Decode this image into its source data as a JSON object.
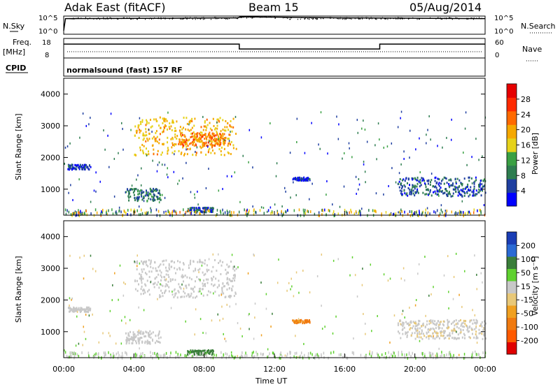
{
  "header": {
    "radar": "Adak East (fitACF)",
    "beam": "Beam 15",
    "date": "05/Aug/2014"
  },
  "noise_panel": {
    "left_label": "N.Sky",
    "right_label": "N.Search",
    "ticks": [
      "10^5",
      "10^0"
    ]
  },
  "freq_panel": {
    "left_label_top": "Freq.",
    "left_label_unit": "[MHz]",
    "left_ticks": [
      "18",
      "8"
    ],
    "right_label": "Nave",
    "right_ticks": [
      "60",
      "0"
    ],
    "cpid_label": "CPID"
  },
  "cpid_panel": {
    "text": "normalsound (fast) 157 RF"
  },
  "colors": {
    "power": [
      "#0000ff",
      "#1f3fa0",
      "#2e7d50",
      "#3aa043",
      "#e6d21a",
      "#f5a800",
      "#ff6a00",
      "#ff2a00",
      "#e60000"
    ],
    "velocity": [
      "#1a3db5",
      "#2a6ad4",
      "#3a7e3a",
      "#5fd12f",
      "#c8c8c8",
      "#e8c878",
      "#f0a020",
      "#f07a10",
      "#ff5a00",
      "#e00000"
    ]
  },
  "chart_data": [
    {
      "type": "line",
      "name": "noise",
      "x": [
        0,
        0.1,
        6,
        9,
        9.9,
        10.1,
        12,
        16,
        20,
        24
      ],
      "series": [
        {
          "values": [
            1,
            4.3,
            4.4,
            4.5,
            4.5,
            4.8,
            4.7,
            4.5,
            4.4,
            4.3
          ]
        }
      ],
      "ylim": [
        0,
        5
      ]
    },
    {
      "type": "line",
      "name": "frequency",
      "x": [
        0,
        10,
        10,
        18,
        18,
        24
      ],
      "series": [
        {
          "values": [
            14.5,
            14.5,
            11.5,
            11.5,
            14.5,
            14.5
          ]
        }
      ],
      "ylim": [
        6,
        18
      ]
    },
    {
      "type": "heatmap",
      "name": "power",
      "xlabel": "",
      "ylabel": "Slant Range [km]",
      "xlim": [
        0,
        24
      ],
      "ylim": [
        180,
        4500
      ],
      "yticks": [
        "1000",
        "2000",
        "3000",
        "4000"
      ],
      "colorbar_label": "Power [dB]",
      "colorbar_ticks": [
        "4",
        "8",
        "12",
        "16",
        "20",
        "24",
        "28"
      ],
      "features": [
        {
          "t0": 4.0,
          "t1": 9.8,
          "r0": 2100,
          "r1": 3300,
          "level": 20
        },
        {
          "t0": 6.5,
          "t1": 9.2,
          "r0": 2400,
          "r1": 2800,
          "level": 24
        },
        {
          "t0": 0.2,
          "t1": 1.5,
          "r0": 1650,
          "r1": 1800,
          "level": 6
        },
        {
          "t0": 3.5,
          "t1": 5.5,
          "r0": 650,
          "r1": 1050,
          "level": 10
        },
        {
          "t0": 7.0,
          "t1": 8.5,
          "r0": 300,
          "r1": 450,
          "level": 8
        },
        {
          "t0": 13.0,
          "t1": 14.0,
          "r0": 1300,
          "r1": 1400,
          "level": 6
        },
        {
          "t0": 19.0,
          "t1": 24.0,
          "r0": 800,
          "r1": 1400,
          "level": 8
        }
      ]
    },
    {
      "type": "heatmap",
      "name": "velocity",
      "xlabel": "Time UT",
      "ylabel": "Slant Range [km]",
      "xlim": [
        0,
        24
      ],
      "ylim": [
        180,
        4500
      ],
      "xticks": [
        "00:00",
        "04:00",
        "08:00",
        "12:00",
        "16:00",
        "20:00",
        "00:00"
      ],
      "yticks": [
        "1000",
        "2000",
        "3000",
        "4000"
      ],
      "colorbar_label": "Velocity [m s⁻¹]",
      "colorbar_ticks": [
        "200",
        "100",
        "50",
        "15",
        "-15",
        "-50",
        "-100",
        "-200"
      ],
      "features": [
        {
          "t0": 4.0,
          "t1": 9.8,
          "r0": 2100,
          "r1": 3300,
          "level": 0
        },
        {
          "t0": 0.2,
          "t1": 1.5,
          "r0": 1650,
          "r1": 1800,
          "level": 0
        },
        {
          "t0": 3.5,
          "t1": 5.5,
          "r0": 650,
          "r1": 1050,
          "level": 0
        },
        {
          "t0": 7.0,
          "t1": 8.5,
          "r0": 300,
          "r1": 450,
          "level": 60
        },
        {
          "t0": 13.0,
          "t1": 14.0,
          "r0": 1300,
          "r1": 1400,
          "level": -80
        },
        {
          "t0": 19.0,
          "t1": 24.0,
          "r0": 800,
          "r1": 1400,
          "level": -10
        }
      ]
    }
  ]
}
